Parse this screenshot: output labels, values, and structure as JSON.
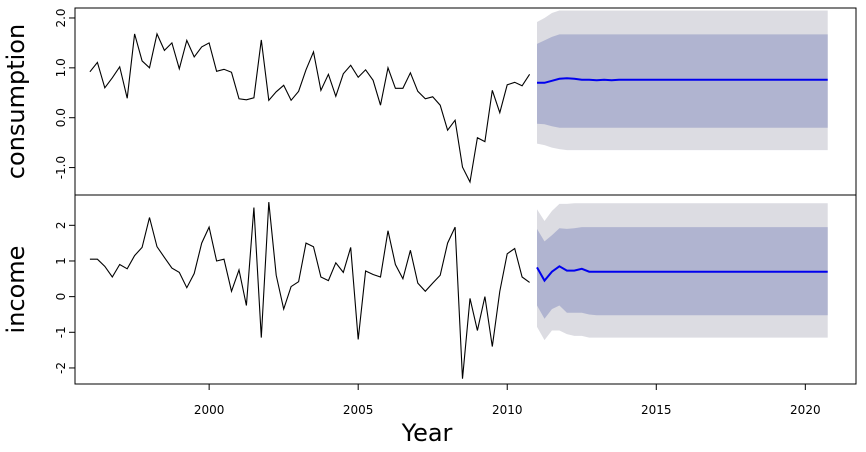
{
  "chart_data": {
    "type": "line",
    "title": "",
    "xlabel": "Year",
    "x_ticks": [
      "2000",
      "2005",
      "2010",
      "2015",
      "2020"
    ],
    "xlim": [
      1995.5,
      2021.7
    ],
    "colors": {
      "history": "#000000",
      "forecast": "#0000ee",
      "band_80": "#b0b4d0",
      "band_95": "#dcdce2"
    },
    "panels": [
      {
        "ylabel": "consumption",
        "ylim": [
          -1.55,
          2.2
        ],
        "y_ticks": [
          "-1.0",
          "0.0",
          "1.0",
          "2.0"
        ],
        "y_tick_values": [
          -1,
          0,
          1,
          2
        ],
        "history": {
          "start": 1996.0,
          "step": 0.25,
          "values": [
            0.92,
            1.11,
            0.6,
            0.8,
            1.02,
            0.39,
            1.68,
            1.14,
            1.0,
            1.68,
            1.35,
            1.5,
            0.98,
            1.55,
            1.22,
            1.42,
            1.5,
            0.93,
            0.97,
            0.91,
            0.38,
            0.36,
            0.4,
            1.56,
            0.35,
            0.52,
            0.65,
            0.35,
            0.53,
            0.96,
            1.32,
            0.55,
            0.87,
            0.43,
            0.88,
            1.05,
            0.81,
            0.96,
            0.75,
            0.25,
            1.0,
            0.59,
            0.59,
            0.9,
            0.53,
            0.38,
            0.42,
            0.25,
            -0.25,
            -0.05,
            -0.99,
            -1.29,
            -0.4,
            -0.48,
            0.55,
            0.1,
            0.66,
            0.71,
            0.64,
            0.87
          ]
        },
        "forecast": {
          "start": 2011.0,
          "step": 0.25,
          "mean": [
            0.7,
            0.7,
            0.74,
            0.78,
            0.79,
            0.78,
            0.76,
            0.76,
            0.75,
            0.76,
            0.75,
            0.76,
            0.76,
            0.76,
            0.76,
            0.76,
            0.76,
            0.76,
            0.76,
            0.76,
            0.76,
            0.76,
            0.76,
            0.76,
            0.76,
            0.76,
            0.76,
            0.76,
            0.76,
            0.76,
            0.76,
            0.76,
            0.76,
            0.76,
            0.76,
            0.76,
            0.76,
            0.76,
            0.76,
            0.76
          ],
          "lo80": [
            -0.12,
            -0.13,
            -0.17,
            -0.2,
            -0.2,
            -0.2,
            -0.2,
            -0.2,
            -0.2,
            -0.2,
            -0.2,
            -0.2,
            -0.2,
            -0.2,
            -0.2,
            -0.2,
            -0.2,
            -0.2,
            -0.2,
            -0.2,
            -0.2,
            -0.2,
            -0.2,
            -0.2,
            -0.2,
            -0.2,
            -0.2,
            -0.2,
            -0.2,
            -0.2,
            -0.2,
            -0.2,
            -0.2,
            -0.2,
            -0.2,
            -0.2,
            -0.2,
            -0.2,
            -0.2,
            -0.2
          ],
          "hi80": [
            1.48,
            1.55,
            1.62,
            1.67,
            1.67,
            1.67,
            1.67,
            1.67,
            1.67,
            1.67,
            1.67,
            1.67,
            1.67,
            1.67,
            1.67,
            1.67,
            1.67,
            1.67,
            1.67,
            1.67,
            1.67,
            1.67,
            1.67,
            1.67,
            1.67,
            1.67,
            1.67,
            1.67,
            1.67,
            1.67,
            1.67,
            1.67,
            1.67,
            1.67,
            1.67,
            1.67,
            1.67,
            1.67,
            1.67,
            1.67
          ],
          "lo95": [
            -0.52,
            -0.55,
            -0.6,
            -0.63,
            -0.65,
            -0.65,
            -0.65,
            -0.65,
            -0.65,
            -0.65,
            -0.65,
            -0.65,
            -0.65,
            -0.65,
            -0.65,
            -0.65,
            -0.65,
            -0.65,
            -0.65,
            -0.65,
            -0.65,
            -0.65,
            -0.65,
            -0.65,
            -0.65,
            -0.65,
            -0.65,
            -0.65,
            -0.65,
            -0.65,
            -0.65,
            -0.65,
            -0.65,
            -0.65,
            -0.65,
            -0.65,
            -0.65,
            -0.65,
            -0.65,
            -0.65
          ],
          "hi95": [
            1.92,
            2.0,
            2.1,
            2.15,
            2.15,
            2.15,
            2.15,
            2.15,
            2.15,
            2.15,
            2.15,
            2.15,
            2.15,
            2.15,
            2.15,
            2.15,
            2.15,
            2.15,
            2.15,
            2.15,
            2.15,
            2.15,
            2.15,
            2.15,
            2.15,
            2.15,
            2.15,
            2.15,
            2.15,
            2.15,
            2.15,
            2.15,
            2.15,
            2.15,
            2.15,
            2.15,
            2.15,
            2.15,
            2.15,
            2.15
          ]
        }
      },
      {
        "ylabel": "income",
        "ylim": [
          -2.45,
          2.85
        ],
        "y_ticks": [
          "-2",
          "-1",
          "0",
          "1",
          "2"
        ],
        "y_tick_values": [
          -2,
          -1,
          0,
          1,
          2
        ],
        "history": {
          "start": 1996.0,
          "step": 0.25,
          "values": [
            1.05,
            1.05,
            0.85,
            0.55,
            0.9,
            0.78,
            1.15,
            1.38,
            2.22,
            1.4,
            1.1,
            0.8,
            0.68,
            0.25,
            0.65,
            1.5,
            1.95,
            1.0,
            1.05,
            0.15,
            0.75,
            -0.25,
            2.5,
            -1.15,
            2.65,
            0.6,
            -0.35,
            0.28,
            0.42,
            1.5,
            1.4,
            0.55,
            0.45,
            0.95,
            0.68,
            1.38,
            -1.2,
            0.72,
            0.62,
            0.55,
            1.85,
            0.9,
            0.5,
            1.3,
            0.38,
            0.15,
            0.38,
            0.6,
            1.5,
            1.95,
            -2.3,
            -0.05,
            -0.95,
            0.0,
            -1.4,
            0.15,
            1.2,
            1.35,
            0.55,
            0.4
          ]
        },
        "forecast": {
          "start": 2011.0,
          "step": 0.25,
          "mean": [
            0.82,
            0.45,
            0.7,
            0.85,
            0.73,
            0.73,
            0.78,
            0.7,
            0.7,
            0.7,
            0.7,
            0.7,
            0.7,
            0.7,
            0.7,
            0.7,
            0.7,
            0.7,
            0.7,
            0.7,
            0.7,
            0.7,
            0.7,
            0.7,
            0.7,
            0.7,
            0.7,
            0.7,
            0.7,
            0.7,
            0.7,
            0.7,
            0.7,
            0.7,
            0.7,
            0.7,
            0.7,
            0.7,
            0.7,
            0.7
          ],
          "lo80": [
            -0.25,
            -0.62,
            -0.35,
            -0.25,
            -0.45,
            -0.45,
            -0.45,
            -0.5,
            -0.52,
            -0.52,
            -0.52,
            -0.52,
            -0.52,
            -0.52,
            -0.52,
            -0.52,
            -0.52,
            -0.52,
            -0.52,
            -0.52,
            -0.52,
            -0.52,
            -0.52,
            -0.52,
            -0.52,
            -0.52,
            -0.52,
            -0.52,
            -0.52,
            -0.52,
            -0.52,
            -0.52,
            -0.52,
            -0.52,
            -0.52,
            -0.52,
            -0.52,
            -0.52,
            -0.52,
            -0.52
          ],
          "hi80": [
            1.9,
            1.55,
            1.72,
            1.92,
            1.9,
            1.92,
            1.95,
            1.95,
            1.95,
            1.95,
            1.95,
            1.95,
            1.95,
            1.95,
            1.95,
            1.95,
            1.95,
            1.95,
            1.95,
            1.95,
            1.95,
            1.95,
            1.95,
            1.95,
            1.95,
            1.95,
            1.95,
            1.95,
            1.95,
            1.95,
            1.95,
            1.95,
            1.95,
            1.95,
            1.95,
            1.95,
            1.95,
            1.95,
            1.95,
            1.95
          ],
          "lo95": [
            -0.85,
            -1.22,
            -0.95,
            -0.95,
            -1.05,
            -1.1,
            -1.1,
            -1.15,
            -1.15,
            -1.15,
            -1.15,
            -1.15,
            -1.15,
            -1.15,
            -1.15,
            -1.15,
            -1.15,
            -1.15,
            -1.15,
            -1.15,
            -1.15,
            -1.15,
            -1.15,
            -1.15,
            -1.15,
            -1.15,
            -1.15,
            -1.15,
            -1.15,
            -1.15,
            -1.15,
            -1.15,
            -1.15,
            -1.15,
            -1.15,
            -1.15,
            -1.15,
            -1.15,
            -1.15,
            -1.15
          ],
          "hi95": [
            2.45,
            2.12,
            2.4,
            2.6,
            2.6,
            2.62,
            2.62,
            2.62,
            2.62,
            2.62,
            2.62,
            2.62,
            2.62,
            2.62,
            2.62,
            2.62,
            2.62,
            2.62,
            2.62,
            2.62,
            2.62,
            2.62,
            2.62,
            2.62,
            2.62,
            2.62,
            2.62,
            2.62,
            2.62,
            2.62,
            2.62,
            2.62,
            2.62,
            2.62,
            2.62,
            2.62,
            2.62,
            2.62,
            2.62,
            2.62
          ]
        }
      }
    ]
  }
}
